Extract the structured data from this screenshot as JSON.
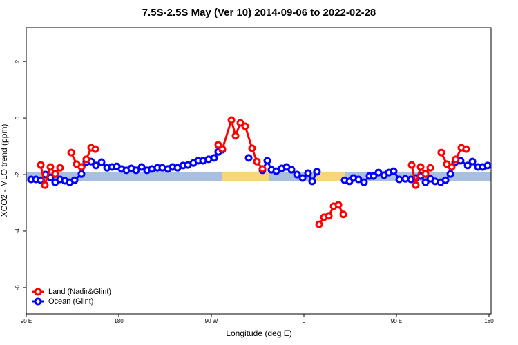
{
  "chart_data": {
    "type": "line",
    "title": "7.5S-2.5S May (Ver 10)   2014-09-06 to 2022-02-28",
    "x_label": "Longitude (deg E)",
    "y_label": "XCO2 - MLO trend (ppm)",
    "xlim": [
      90,
      542
    ],
    "ylim": [
      -6.93,
      3.2
    ],
    "xticks": [
      {
        "value": 90,
        "label": "90 E"
      },
      180,
      {
        "value": 270,
        "label": "90 W"
      },
      {
        "value": 360,
        "label": "0"
      },
      {
        "value": 450,
        "label": "90 E"
      },
      {
        "value": 540,
        "label": "180"
      }
    ],
    "yticks": [
      -6,
      -4,
      -2,
      0,
      2
    ],
    "legend": "bottom-left",
    "background_band": {
      "ylim": [
        -2.22,
        -1.9
      ],
      "color": "#a8bfdf",
      "segments": [
        {
          "xlim": [
            280.7,
            326
          ],
          "color": "#f7d57a"
        },
        {
          "xlim": [
            372,
            400
          ],
          "color": "#f7d57a"
        }
      ]
    },
    "series": [
      {
        "name": "Land (Nadir&Glint)",
        "color": "#ff0000",
        "x": [
          104.1,
          108.1,
          113.5,
          118.2,
          122.9,
          null,
          133.7,
          139.0,
          143.7,
          148.4,
          153.1,
          157.2,
          null,
          276.7,
          280.7,
          289.5,
          293.5,
          298.2,
          302.9,
          309.6,
          314.3,
          319.7,
          null,
          374.8,
          379.5,
          384.2,
          388.9,
          393.6,
          398.3,
          null,
          464.8,
          468.8,
          473.5,
          478.2,
          482.9,
          null,
          493.6,
          499.0,
          503.7,
          507.7,
          513.1,
          517.8
        ],
        "values": [
          -1.66,
          -2.37,
          -1.73,
          -1.98,
          -1.76,
          null,
          -1.22,
          -1.63,
          -1.73,
          -1.46,
          -1.05,
          -1.1,
          null,
          -0.95,
          -1.1,
          -0.07,
          -0.63,
          -0.17,
          -0.29,
          -1.07,
          -1.54,
          -1.8,
          null,
          -3.76,
          -3.51,
          -3.46,
          -3.12,
          -3.07,
          -3.41,
          null,
          -1.66,
          -2.37,
          -1.73,
          -1.98,
          -1.76,
          null,
          -1.22,
          -1.63,
          -1.73,
          -1.46,
          -1.05,
          -1.1
        ]
      },
      {
        "name": "Ocean (Glint)",
        "color": "#0000ff",
        "x": [
          94.7,
          99.4,
          104.1,
          108.8,
          113.5,
          118.2,
          122.9,
          127.6,
          132.3,
          137.0,
          143.7,
          148.4,
          153.1,
          157.8,
          163.2,
          168.6,
          173.3,
          178.0,
          182.7,
          187.4,
          192.1,
          196.8,
          202.2,
          207.5,
          212.2,
          217.6,
          222.3,
          227.7,
          232.4,
          237.1,
          242.5,
          247.2,
          252.5,
          257.2,
          261.9,
          267.3,
          272.7,
          276.7,
          280.7,
          null,
          306.3,
          null,
          319.7,
          324.4,
          328.4,
          333.1,
          338.5,
          343.2,
          347.9,
          353.3,
          358.7,
          364.0,
          368.0,
          372.7,
          null,
          399.6,
          404.3,
          408.3,
          413.0,
          418.4,
          423.8,
          427.8,
          432.5,
          437.9,
          442.6,
          447.3,
          452.7,
          458.7,
          464.1,
          468.8,
          473.5,
          478.2,
          482.9,
          487.6,
          493.0,
          497.7,
          502.4,
          507.1,
          512.4,
          519.2,
          523.9,
          529.2,
          533.9,
          538.6
        ],
        "values": [
          -2.17,
          -2.17,
          -2.2,
          -2.0,
          -2.1,
          -2.27,
          -2.17,
          -2.22,
          -2.27,
          -2.2,
          -1.98,
          -1.56,
          -1.54,
          -1.68,
          -1.56,
          -1.76,
          -1.73,
          -1.71,
          -1.8,
          -1.85,
          -1.78,
          -1.85,
          -1.73,
          -1.85,
          -1.8,
          -1.76,
          -1.76,
          -1.8,
          -1.73,
          -1.76,
          -1.68,
          -1.66,
          -1.59,
          -1.51,
          -1.51,
          -1.46,
          -1.41,
          -1.2,
          -1.12,
          null,
          -1.41,
          null,
          -1.85,
          -1.51,
          -1.83,
          -1.88,
          -1.78,
          -1.73,
          -1.83,
          -2.0,
          -2.12,
          -1.95,
          -2.24,
          -1.9,
          null,
          -2.2,
          -2.24,
          -2.12,
          -2.17,
          -2.27,
          -2.05,
          -2.05,
          -1.93,
          -2.02,
          -1.93,
          -1.88,
          -2.17,
          -2.15,
          -2.17,
          -2.12,
          -2.05,
          -2.27,
          -2.15,
          -2.24,
          -2.27,
          -2.2,
          -1.98,
          -1.56,
          -1.51,
          -1.68,
          -1.54,
          -1.73,
          -1.73,
          -1.68
        ]
      }
    ]
  }
}
